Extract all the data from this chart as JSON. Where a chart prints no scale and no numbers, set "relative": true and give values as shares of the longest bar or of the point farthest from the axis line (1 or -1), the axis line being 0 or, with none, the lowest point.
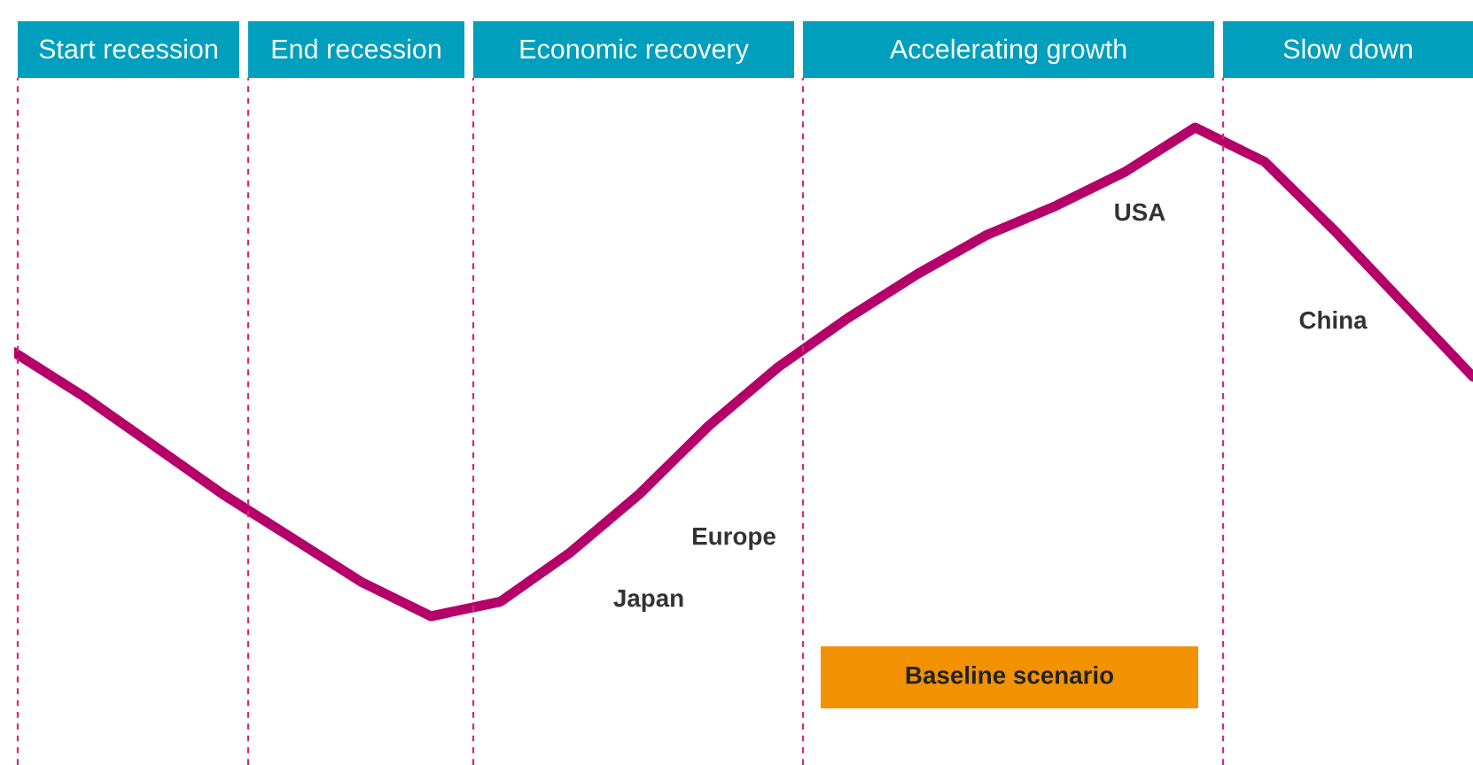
{
  "chart_data": {
    "type": "line",
    "relative": true,
    "tick_labels": false,
    "categories": [
      null,
      null,
      null,
      null,
      null,
      null,
      null,
      null,
      null,
      null,
      null,
      null,
      null,
      null,
      null,
      null,
      null,
      null,
      null,
      null,
      null,
      null
    ],
    "series": [
      {
        "color": "#b5006a",
        "values": [
          0.54,
          0.45,
          0.35,
          0.25,
          0.16,
          0.07,
          0,
          0.03,
          0.13,
          0.25,
          0.39,
          0.51,
          0.61,
          0.7,
          0.78,
          0.84,
          0.91,
          1,
          0.93,
          0.79,
          0.64,
          0.49
        ]
      }
    ],
    "annotations": [
      "Start recession",
      "End recession",
      "Economic recovery",
      "Accelerating growth",
      "Slow down",
      "Europe",
      "Japan",
      "USA",
      "China",
      "Baseline scenario"
    ]
  }
}
